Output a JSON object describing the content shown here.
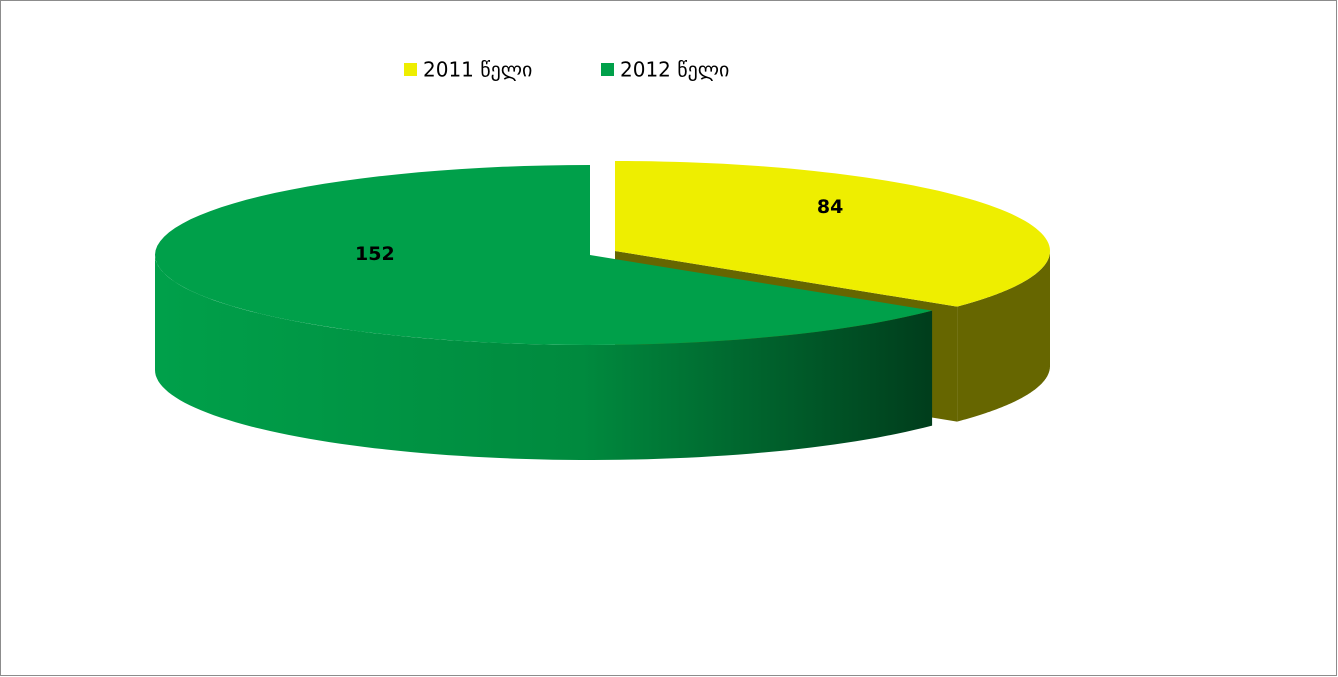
{
  "chart_data": {
    "type": "pie3d",
    "categories": [
      "2011 წელი",
      "2012 წელი"
    ],
    "values": [
      84,
      152
    ],
    "colors": [
      "#eeee00",
      "#00a04a"
    ],
    "legend": "top"
  }
}
